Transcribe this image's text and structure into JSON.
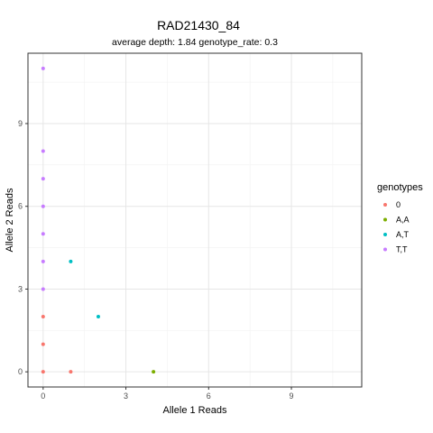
{
  "chart_data": {
    "type": "scatter",
    "title": "RAD21430_84",
    "subtitle": "average depth:  1.84  genotype_rate:  0.3",
    "xlabel": "Allele 1 Reads",
    "ylabel": "Allele 2 Reads",
    "xlim": [
      -0.55,
      11.55
    ],
    "ylim": [
      -0.55,
      11.55
    ],
    "xticks": [
      0,
      3,
      6,
      9
    ],
    "yticks": [
      0,
      3,
      6,
      9
    ],
    "grid": true,
    "legend": {
      "title": "genotypes",
      "position": "right"
    },
    "series": [
      {
        "name": "0",
        "color": "#F8766D",
        "points": [
          [
            0,
            0
          ],
          [
            1,
            0
          ],
          [
            0,
            1
          ],
          [
            0,
            2
          ]
        ]
      },
      {
        "name": "A,A",
        "color": "#7CAE00",
        "points": [
          [
            4,
            0
          ]
        ]
      },
      {
        "name": "A,T",
        "color": "#00BFC4",
        "points": [
          [
            1,
            4
          ],
          [
            2,
            2
          ]
        ]
      },
      {
        "name": "T,T",
        "color": "#C77CFF",
        "points": [
          [
            0,
            3
          ],
          [
            0,
            4
          ],
          [
            0,
            5
          ],
          [
            0,
            6
          ],
          [
            0,
            7
          ],
          [
            0,
            8
          ],
          [
            0,
            11
          ]
        ]
      }
    ]
  }
}
